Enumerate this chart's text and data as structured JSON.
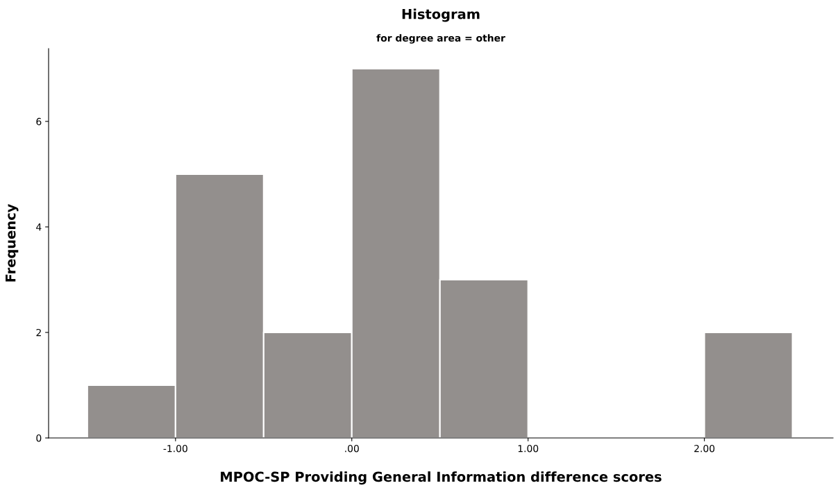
{
  "chart_data": {
    "type": "histogram",
    "title": "Histogram",
    "subtitle": "for degree area = other",
    "xlabel": "MPOC-SP Providing General Information difference scores",
    "ylabel": "Frequency",
    "bins": [
      -1.5,
      -1.0,
      -0.5,
      0.0,
      0.5,
      1.0,
      1.5,
      2.0,
      2.5
    ],
    "values": [
      1,
      5,
      2,
      7,
      3,
      0,
      0,
      2
    ],
    "color": "#938f8d",
    "xlim": [
      -1.72,
      2.73
    ],
    "ylim": [
      0,
      7.38
    ],
    "xticks": [
      {
        "value": -1,
        "label": "-1.00"
      },
      {
        "value": 0,
        "label": ".00"
      },
      {
        "value": 1,
        "label": "1.00"
      },
      {
        "value": 2,
        "label": "2.00"
      }
    ],
    "yticks": [
      0,
      2,
      4,
      6
    ],
    "grid": false,
    "legend": false
  }
}
